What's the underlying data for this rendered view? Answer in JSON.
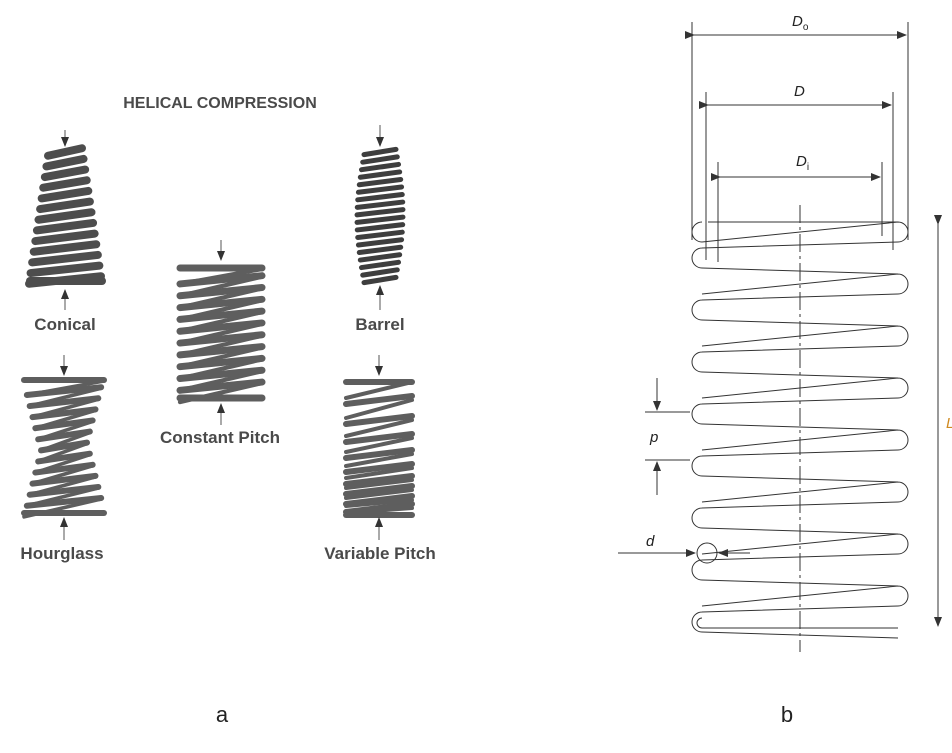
{
  "panel_a": {
    "title": "HELICAL COMPRESSION",
    "springs": [
      {
        "label": "Conical"
      },
      {
        "label": "Barrel"
      },
      {
        "label": "Constant Pitch"
      },
      {
        "label": "Hourglass"
      },
      {
        "label": "Variable Pitch"
      }
    ],
    "caption": "a"
  },
  "panel_b": {
    "dimensions": [
      {
        "symbol": "D",
        "subscript": "o"
      },
      {
        "symbol": "D"
      },
      {
        "symbol": "D",
        "subscript": "i"
      },
      {
        "symbol": "p"
      },
      {
        "symbol": "d"
      },
      {
        "symbol": "L"
      }
    ],
    "caption": "b"
  }
}
